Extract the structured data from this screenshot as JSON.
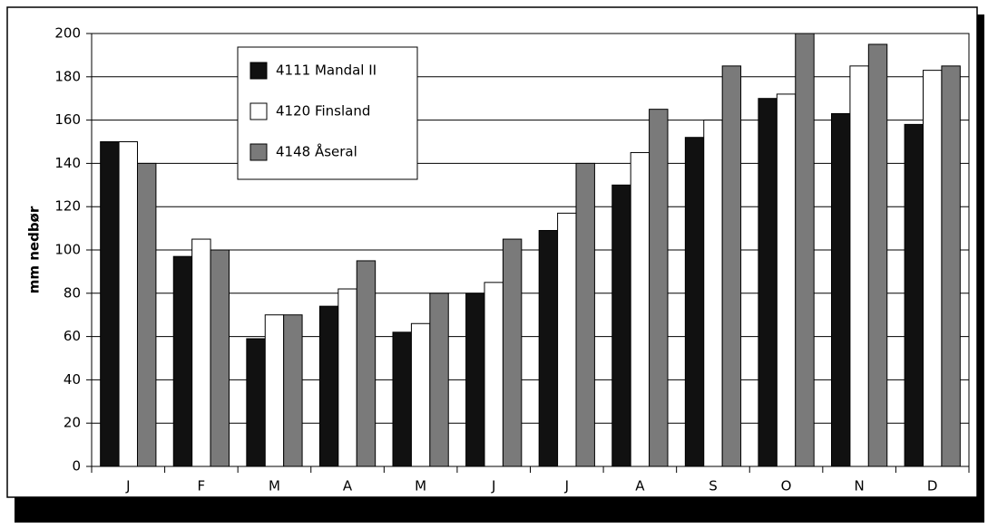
{
  "chart_data": {
    "type": "bar",
    "y_label": "mm nedbør",
    "categories": [
      "J",
      "F",
      "M",
      "A",
      "M",
      "J",
      "J",
      "A",
      "S",
      "O",
      "N",
      "D"
    ],
    "series": [
      {
        "name": "4111 Mandal II",
        "color": "#111111",
        "values": [
          150,
          97,
          59,
          74,
          62,
          80,
          109,
          130,
          152,
          170,
          163,
          158
        ]
      },
      {
        "name": "4120 Finsland",
        "color": "#ffffff",
        "values": [
          150,
          105,
          70,
          82,
          66,
          85,
          117,
          145,
          160,
          172,
          185,
          183
        ]
      },
      {
        "name": "4148 Åseral",
        "color": "#7a7a7a",
        "values": [
          140,
          100,
          70,
          95,
          80,
          105,
          140,
          165,
          185,
          200,
          195,
          185
        ]
      }
    ],
    "ylim": [
      0,
      200
    ],
    "yticks": [
      0,
      20,
      40,
      60,
      80,
      100,
      120,
      140,
      160,
      180,
      200
    ],
    "grid": true
  }
}
